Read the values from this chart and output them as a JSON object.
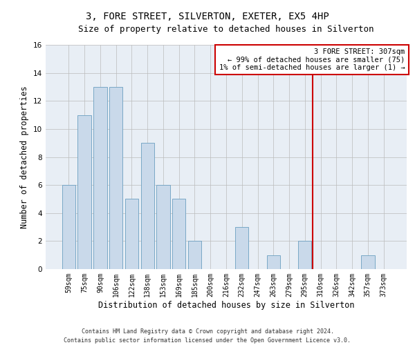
{
  "title": "3, FORE STREET, SILVERTON, EXETER, EX5 4HP",
  "subtitle": "Size of property relative to detached houses in Silverton",
  "xlabel_bottom": "Distribution of detached houses by size in Silverton",
  "ylabel": "Number of detached properties",
  "categories": [
    "59sqm",
    "75sqm",
    "90sqm",
    "106sqm",
    "122sqm",
    "138sqm",
    "153sqm",
    "169sqm",
    "185sqm",
    "200sqm",
    "216sqm",
    "232sqm",
    "247sqm",
    "263sqm",
    "279sqm",
    "295sqm",
    "310sqm",
    "326sqm",
    "342sqm",
    "357sqm",
    "373sqm"
  ],
  "values": [
    6,
    11,
    13,
    13,
    5,
    9,
    6,
    5,
    2,
    0,
    0,
    3,
    0,
    1,
    0,
    2,
    0,
    0,
    0,
    1,
    0
  ],
  "bar_color": "#c9d9ea",
  "bar_edgecolor": "#6a9ec0",
  "grid_color": "#bbbbbb",
  "background_color": "#e8eef5",
  "vline_x": 15.5,
  "vline_color": "#cc0000",
  "annotation_line1": "3 FORE STREET: 307sqm",
  "annotation_line2": "← 99% of detached houses are smaller (75)",
  "annotation_line3": "1% of semi-detached houses are larger (1) →",
  "annotation_box_color": "#cc0000",
  "ylim": [
    0,
    16
  ],
  "yticks": [
    0,
    2,
    4,
    6,
    8,
    10,
    12,
    14,
    16
  ],
  "footer": "Contains HM Land Registry data © Crown copyright and database right 2024.\nContains public sector information licensed under the Open Government Licence v3.0.",
  "title_fontsize": 10,
  "subtitle_fontsize": 9,
  "tick_fontsize": 7,
  "ylabel_fontsize": 8.5,
  "xlabel_fontsize": 8.5,
  "annotation_fontsize": 7.5,
  "footer_fontsize": 6
}
